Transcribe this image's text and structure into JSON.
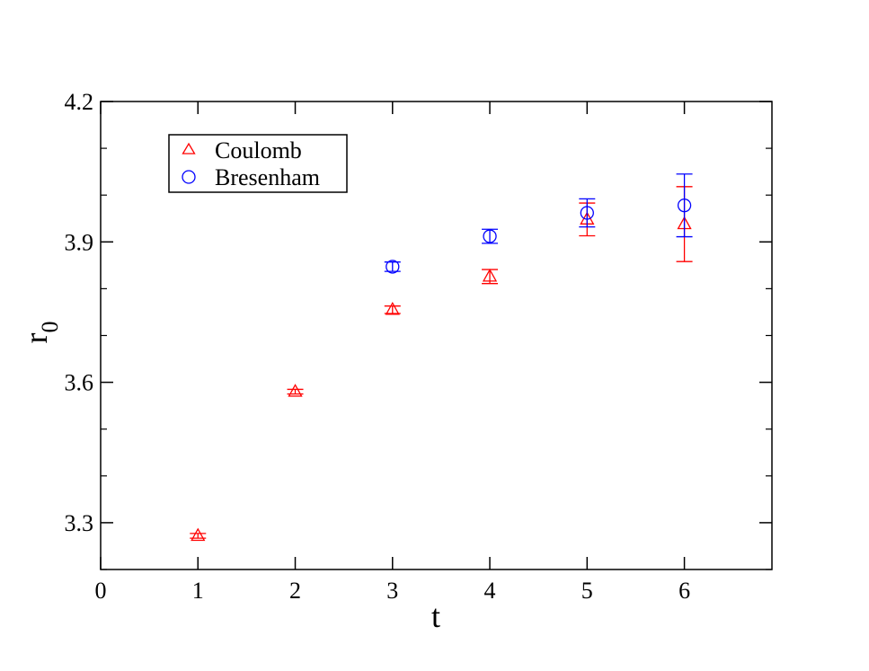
{
  "chart_data": {
    "type": "scatter",
    "xlabel": "t",
    "ylabel_main": "r",
    "ylabel_sub": "0",
    "xlim": [
      0,
      6.9
    ],
    "ylim": [
      3.2,
      4.2
    ],
    "xticks": [
      0,
      1,
      2,
      3,
      4,
      5,
      6
    ],
    "yticks": [
      3.3,
      3.6,
      3.9,
      4.2
    ],
    "xtick_labels": [
      "0",
      "1",
      "2",
      "3",
      "4",
      "5",
      "6"
    ],
    "ytick_labels": [
      "3.3",
      "3.6",
      "3.9",
      "4.2"
    ],
    "grid": false,
    "legend_position": "top-left",
    "series": [
      {
        "name": "Coulomb",
        "marker": "triangle",
        "color": "#ff0000",
        "x": [
          1,
          2,
          3,
          4,
          5,
          6
        ],
        "y": [
          3.272,
          3.58,
          3.755,
          3.826,
          3.948,
          3.938
        ],
        "yerr": [
          0.005,
          0.005,
          0.008,
          0.015,
          0.035,
          0.08
        ]
      },
      {
        "name": "Bresenham",
        "marker": "circle",
        "color": "#0000ff",
        "x": [
          3,
          4,
          5,
          6
        ],
        "y": [
          3.847,
          3.912,
          3.962,
          3.978
        ],
        "yerr": [
          0.01,
          0.015,
          0.03,
          0.067
        ]
      }
    ]
  }
}
